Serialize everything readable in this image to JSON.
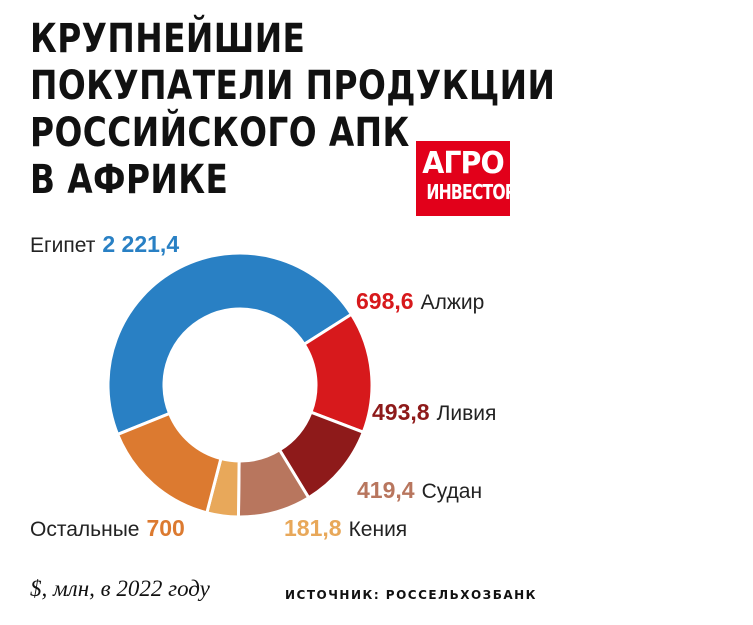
{
  "title_lines": [
    "КРУПНЕЙШИЕ",
    "ПОКУПАТЕЛИ ПРОДУКЦИИ",
    "РОССИЙСКОГО АПК",
    "В АФРИКЕ"
  ],
  "logo": {
    "line1": "АГРО",
    "line2": "ИНВЕСТОР"
  },
  "footnote": "$, млн, в 2022 году",
  "source": "ИСТОЧНИК: РОССЕЛЬХОЗБАНК",
  "chart_data": {
    "type": "pie",
    "variant": "donut",
    "unit": "$, млн",
    "slices": [
      {
        "name": "Египет",
        "value": 2221.4,
        "label": "2 221,4",
        "color": "#2980c4"
      },
      {
        "name": "Алжир",
        "value": 698.6,
        "label": "698,6",
        "color": "#d7191c"
      },
      {
        "name": "Ливия",
        "value": 493.8,
        "label": "493,8",
        "color": "#8e1a1a"
      },
      {
        "name": "Судан",
        "value": 419.4,
        "label": "419,4",
        "color": "#b8765e"
      },
      {
        "name": "Кения",
        "value": 181.8,
        "label": "181,8",
        "color": "#e8a85a"
      },
      {
        "name": "Остальные",
        "value": 700,
        "label": "700",
        "color": "#dc7a30"
      }
    ]
  }
}
